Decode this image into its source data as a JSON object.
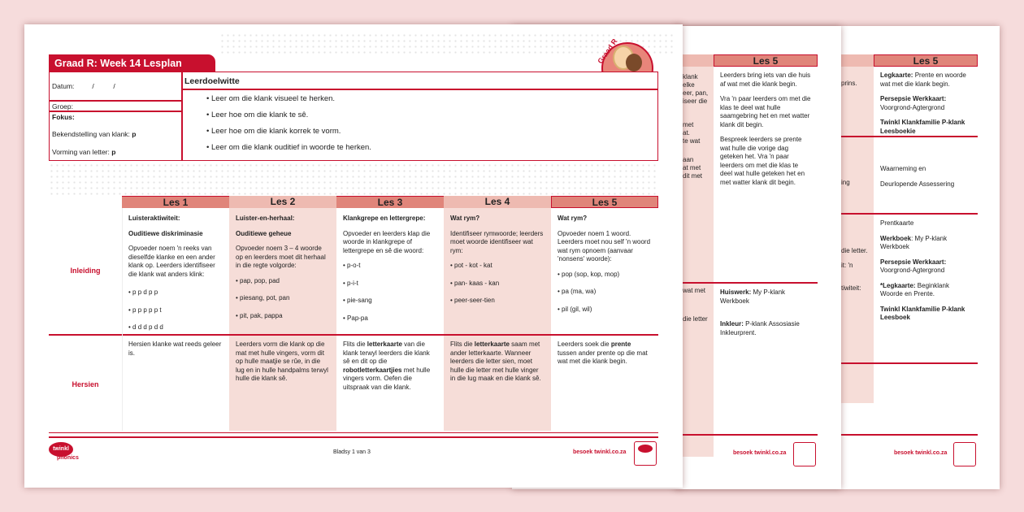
{
  "colors": {
    "brand_red": "#c8102e",
    "header_dark": "#e0857a",
    "header_light": "#eebab1",
    "shade": "#f6ddd8",
    "background": "#f6dcdc"
  },
  "title": "Graad R: Week 14 Lesplan",
  "badge": "Graad R",
  "info": {
    "datum_label": "Datum:",
    "datum_slashes": "/          /",
    "groep_label": "Groep:",
    "fokus_label": "Fokus:",
    "sound_label": "Bekendstelling van klank:",
    "sound_value": "p",
    "letter_label": "Vorming van letter:",
    "letter_value": "p"
  },
  "objectives": {
    "heading": "Leerdoelwitte",
    "items": [
      "Leer om die klank visueel te herken.",
      "Leer hoe om die klank te sê.",
      "Leer hoe om die klank korrek te vorm.",
      "Leer om die klank ouditief in woorde te herken."
    ]
  },
  "lessons": {
    "headers": [
      "Les 1",
      "Les 2",
      "Les 3",
      "Les 4",
      "Les 5"
    ],
    "row_labels": [
      "Inleiding",
      "Hersien"
    ],
    "inleiding": [
      {
        "h1": "Luisteraktiwiteit:",
        "h2": "Ouditiewe diskriminasie",
        "text": "Opvoeder noem 'n reeks van dieselfde klanke en een ander klank op. Leerders identifiseer die klank wat anders klink:",
        "bullets": [
          "p p d p p",
          "p p p p p t",
          "d d d p d d"
        ]
      },
      {
        "h1": "Luister-en-herhaal:",
        "h2": "Ouditiewe geheue",
        "text": "Opvoeder noem 3 – 4 woorde op en leerders moet dit herhaal in die regte volgorde:",
        "bullets": [
          "pap, pop, pad",
          "piesang, pot, pan",
          "pit, pak, pappa"
        ]
      },
      {
        "h1": "Klankgrepe en lettergrepe:",
        "h2": "",
        "text": "Opvoeder en leerders klap die woorde in klankgrepe of lettergrepe en sê die woord:",
        "bullets": [
          "p-o-t",
          "p-i-t",
          "pie-sang",
          "Pap-pa"
        ]
      },
      {
        "h1": "Wat rym?",
        "h2": "",
        "text": "Identifiseer rymwoorde; leerders moet woorde identifiseer wat rym:",
        "bullets": [
          "pot - kot - kat",
          "pan- kaas - kan",
          "peer-seer-tien"
        ]
      },
      {
        "h1": "Wat rym?",
        "h2": "",
        "text": "Opvoeder noem 1 woord. Leerders moet nou self 'n woord wat rym opnoem (aanvaar 'nonsens' woorde):",
        "bullets": [
          "pop (sop, kop, mop)",
          "pa (ma, wa)",
          "pil (gil, wil)"
        ]
      }
    ],
    "hersien": [
      [
        "Hersien klanke wat reeds geleer is.",
        "",
        ""
      ],
      [
        "Leerders vorm die klank op die mat met hulle vingers, vorm dit op hulle maatjie se rûe, in die lug en in hulle handpalms terwyl hulle die klank sê.",
        "",
        ""
      ],
      [
        "Flits die ",
        "letterkaarte",
        " van die klank terwyl leerders die klank sê en dit op die ",
        "robotletterkaartjies",
        " met hulle vingers vorm. Oefen die uitspraak van die klank."
      ],
      [
        "Flits die ",
        "letterkaarte",
        " saam met ander letterkaarte. Wanneer leerders die letter sien, moet hulle die letter met hulle vinger in die lug maak en die klank sê."
      ],
      [
        "Leerders soek die ",
        "prente",
        " tussen ander prente op die mat wat met die klank begin."
      ]
    ]
  },
  "footer": {
    "logo": "twinkl phonics",
    "page": "Bladsy 1 van 3",
    "site": "besoek twinkl.co.za",
    "seal": "twinkl Quality Assured"
  },
  "page2": {
    "header": "Les 5",
    "fragments": [
      "klank",
      "elke",
      "eer, pan,",
      "iseer die",
      "met",
      "at.",
      "te wat",
      "aan",
      "at met",
      "dit met",
      "wat met",
      "die letter"
    ],
    "les5_top": [
      "Leerders bring iets van die huis af wat met die klank begin.",
      "Vra 'n paar leerders om met die klas te deel wat hulle saamgebring het en met watter klank dit begin.",
      "Bespreek leerders se prente wat hulle die vorige dag geteken het. Vra 'n paar leerders om met die klas te deel wat hulle geteken het en met watter klank dit begin."
    ],
    "huiswerk_label": "Huiswerk:",
    "huiswerk_text": " My P-klank Werkboek",
    "inkleur_label": "Inkleur:",
    "inkleur_text": " P-klank Assosiasie Inkleurprent.",
    "site": "besoek twinkl.co.za"
  },
  "page3": {
    "header": "Les 5",
    "fragments": [
      "prins.",
      "ing",
      "die letter.",
      "it: 'n",
      "tiwiteit:"
    ],
    "legkaarte_label": "Legkaarte:",
    "legkaarte_text": " Prente en woorde wat met die klank begin.",
    "persepsie_label": "Persepsie Werkkaart:",
    "persepsie_text": "Voorgrond-Agtergrond",
    "leesboekie": "Twinkl Klankfamilie P-klank Leesboekie",
    "assess1": "Waarneming en",
    "assess2": "Deurlopende Assessering",
    "prentkaarte": "Prentkaarte",
    "werkboek_label": "Werkboek",
    "werkboek_text": ": My P-klank Werkboek",
    "persepsie2_label": "Persepsie Werkkaart:",
    "persepsie2_text": "Voorgrond-Agtergrond",
    "legkaarte2_label": "*Legkaarte:",
    "legkaarte2_text": " Beginklank Woorde en Prente.",
    "leesboek": "Twinkl Klankfamilie P-klank Leesboek",
    "site": "besoek twinkl.co.za"
  }
}
